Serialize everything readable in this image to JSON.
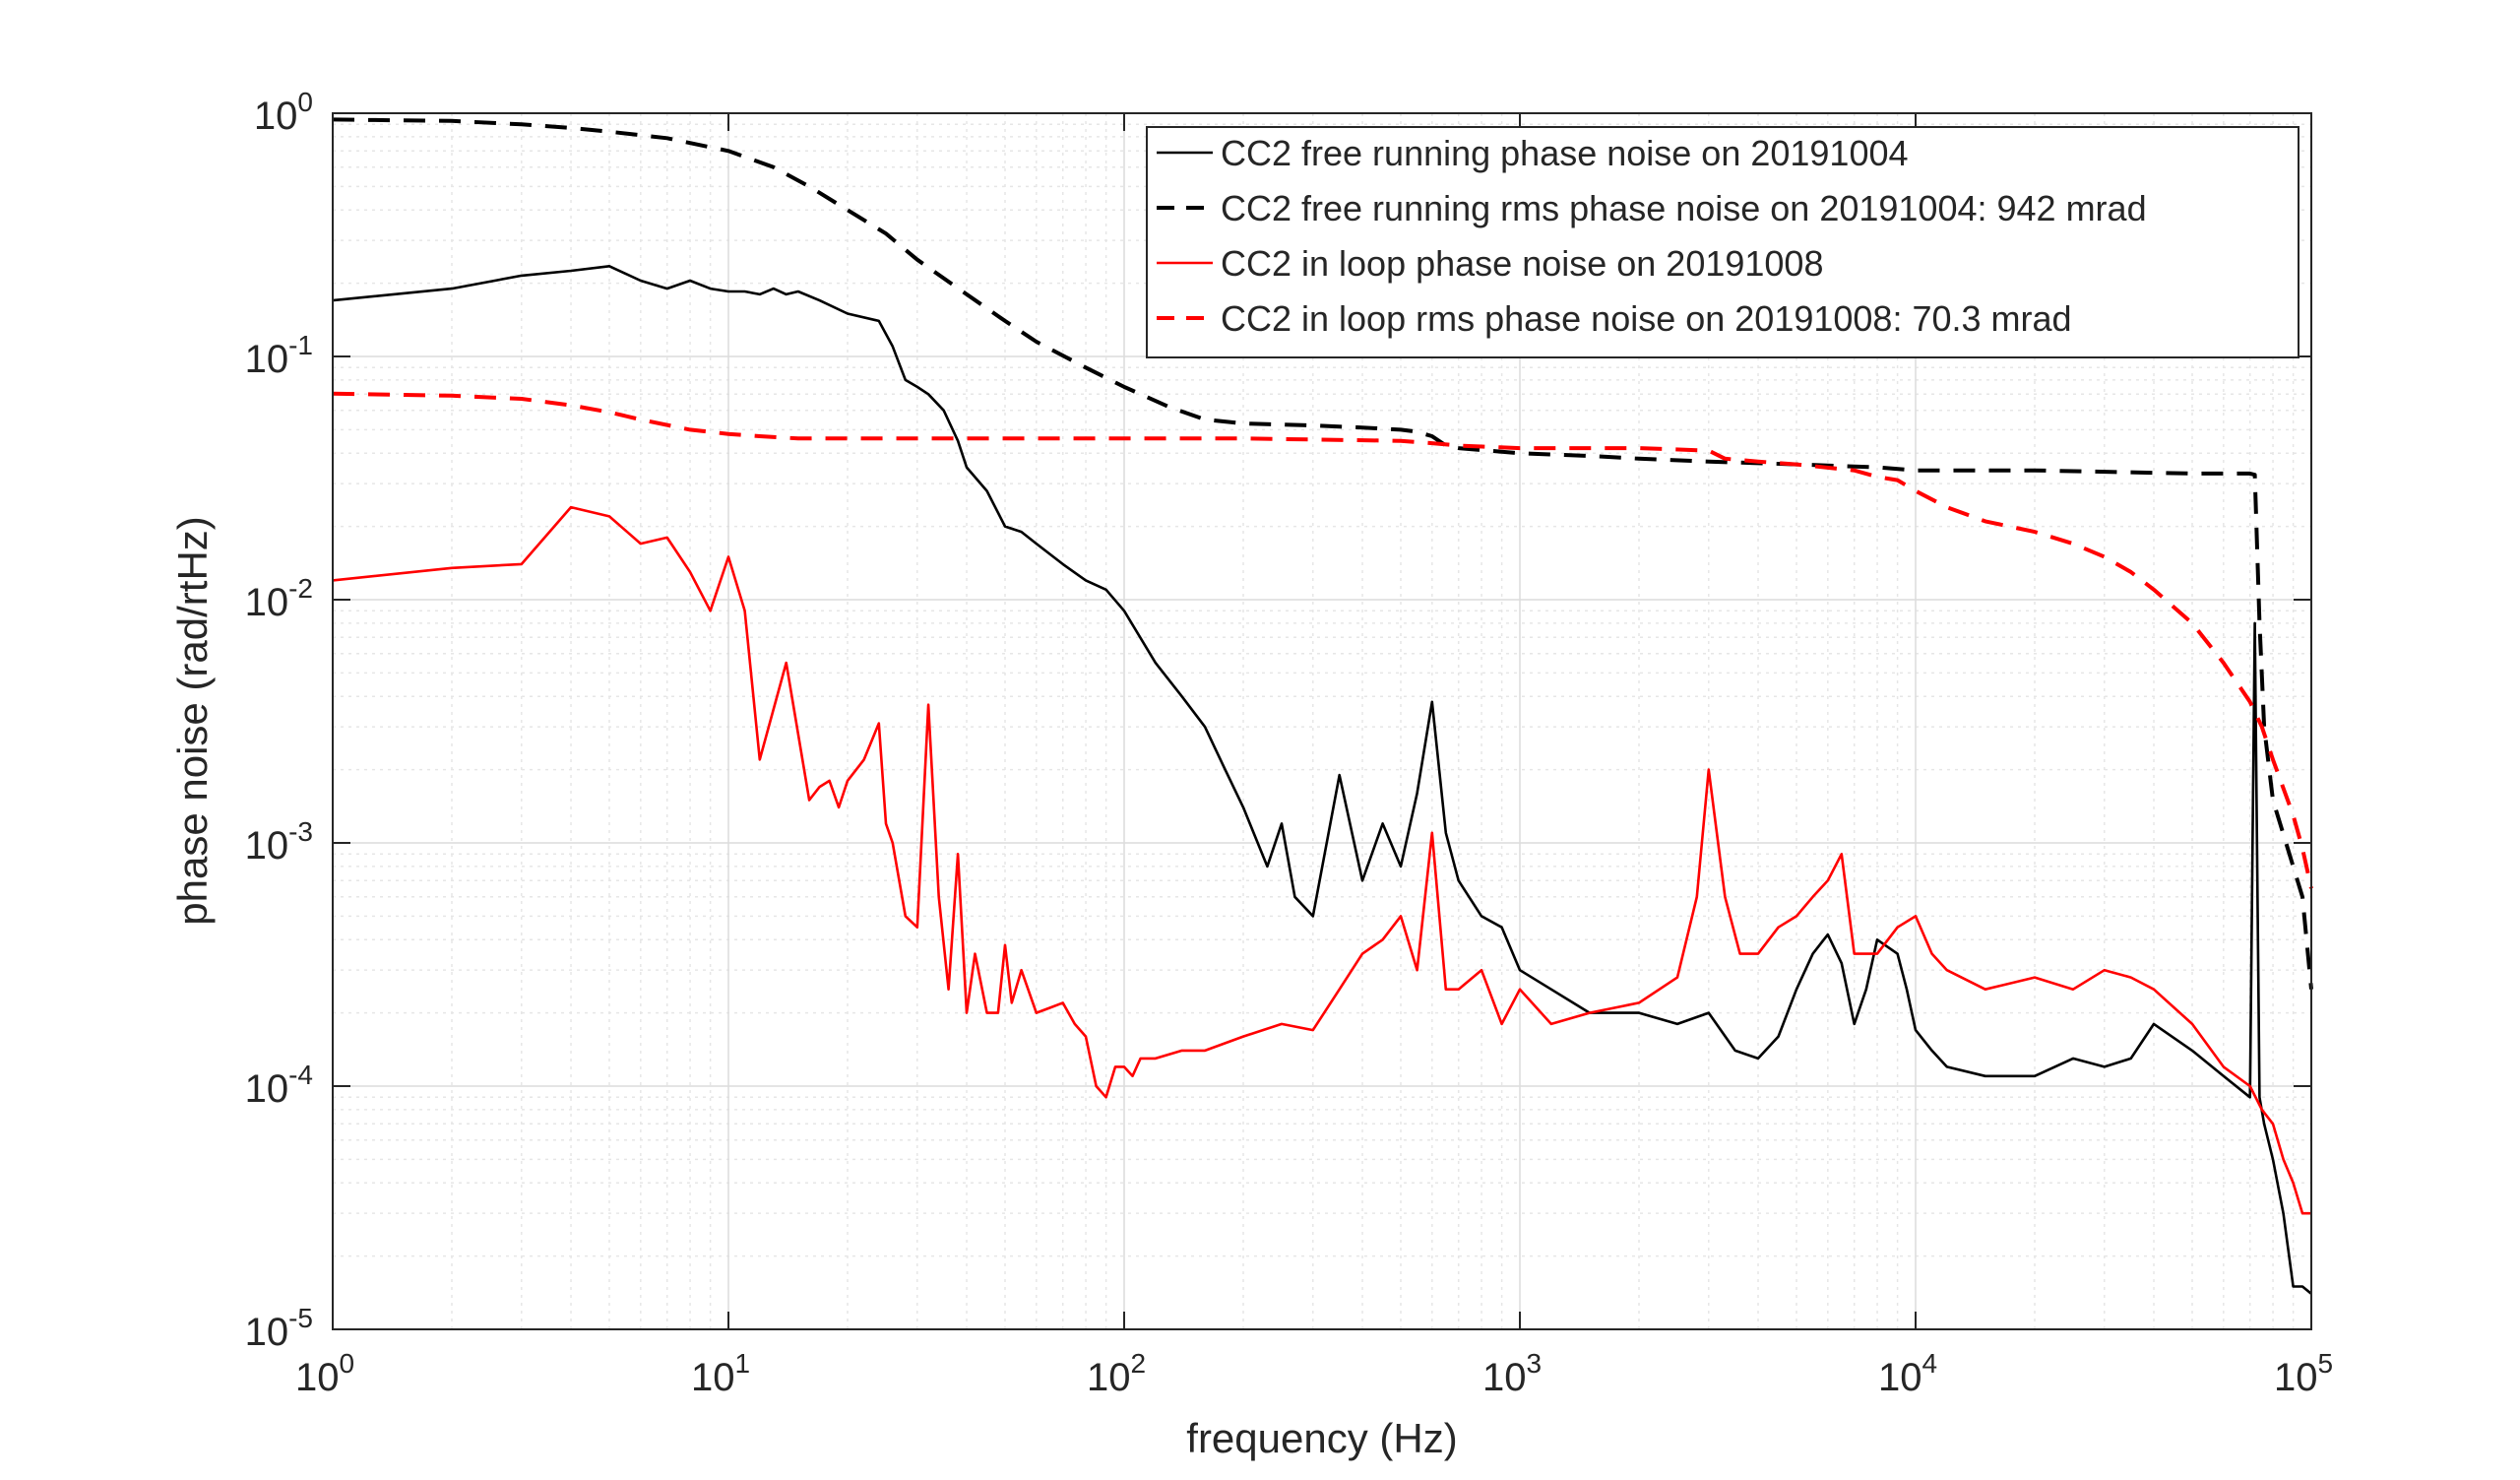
{
  "chart_data": {
    "type": "line",
    "title": "",
    "xlabel": "frequency (Hz)",
    "ylabel": "phase noise (rad/rtHz)",
    "x_scale": "log",
    "y_scale": "log",
    "xlim": [
      1,
      100000
    ],
    "ylim": [
      1e-05,
      1
    ],
    "grid": true,
    "minor_grid": true,
    "legend_position": "top-right",
    "x_ticks": [
      {
        "base": "10",
        "exp": "0",
        "value": 1
      },
      {
        "base": "10",
        "exp": "1",
        "value": 10
      },
      {
        "base": "10",
        "exp": "2",
        "value": 100
      },
      {
        "base": "10",
        "exp": "3",
        "value": 1000
      },
      {
        "base": "10",
        "exp": "4",
        "value": 10000
      },
      {
        "base": "10",
        "exp": "5",
        "value": 100000
      }
    ],
    "y_ticks": [
      {
        "base": "10",
        "exp": "-5",
        "value": 1e-05
      },
      {
        "base": "10",
        "exp": "-4",
        "value": 0.0001
      },
      {
        "base": "10",
        "exp": "-3",
        "value": 0.001
      },
      {
        "base": "10",
        "exp": "-2",
        "value": 0.01
      },
      {
        "base": "10",
        "exp": "-1",
        "value": 0.1
      },
      {
        "base": "10",
        "exp": "0",
        "value": 1
      }
    ],
    "series": [
      {
        "name": "CC2 free running phase noise on 20191004",
        "color": "#000000",
        "dash": "solid",
        "x": [
          1,
          2,
          3,
          4,
          5,
          6,
          7,
          8,
          9,
          10,
          11,
          12,
          13,
          14,
          15,
          17,
          20,
          24,
          26,
          28,
          30,
          32,
          35,
          38,
          40,
          45,
          50,
          55,
          60,
          70,
          80,
          90,
          100,
          120,
          140,
          160,
          180,
          200,
          230,
          250,
          270,
          300,
          350,
          400,
          450,
          500,
          550,
          600,
          650,
          700,
          800,
          900,
          1000,
          1200,
          1500,
          2000,
          2500,
          3000,
          3500,
          4000,
          4500,
          5000,
          5500,
          6000,
          6500,
          7000,
          7500,
          8000,
          9000,
          9500,
          10000,
          11000,
          12000,
          15000,
          20000,
          25000,
          30000,
          35000,
          40000,
          50000,
          60000,
          70000,
          72000,
          74000,
          76000,
          80000,
          85000,
          90000,
          95000,
          100000
        ],
        "y": [
          0.17,
          0.19,
          0.215,
          0.225,
          0.235,
          0.205,
          0.19,
          0.205,
          0.19,
          0.185,
          0.185,
          0.18,
          0.19,
          0.18,
          0.185,
          0.17,
          0.15,
          0.14,
          0.11,
          0.08,
          0.075,
          0.07,
          0.06,
          0.045,
          0.035,
          0.028,
          0.02,
          0.019,
          0.017,
          0.014,
          0.012,
          0.011,
          0.009,
          0.0055,
          0.004,
          0.003,
          0.002,
          0.0014,
          0.0008,
          0.0012,
          0.0006,
          0.0005,
          0.0019,
          0.0007,
          0.0012,
          0.0008,
          0.0016,
          0.0038,
          0.0011,
          0.0007,
          0.0005,
          0.00045,
          0.0003,
          0.00025,
          0.0002,
          0.0002,
          0.00018,
          0.0002,
          0.00014,
          0.00013,
          0.00016,
          0.00025,
          0.00035,
          0.00042,
          0.00032,
          0.00018,
          0.00025,
          0.0004,
          0.00035,
          0.00025,
          0.00017,
          0.00014,
          0.00012,
          0.00011,
          0.00011,
          0.00013,
          0.00012,
          0.00013,
          0.00018,
          0.00014,
          0.00011,
          9e-05,
          0.008,
          9e-05,
          7e-05,
          5e-05,
          3e-05,
          1.5e-05,
          1.5e-05,
          1.4e-05
        ]
      },
      {
        "name": "CC2 free running rms phase noise on 20191004: 942 mrad",
        "color": "#000000",
        "dash": "dashed",
        "x": [
          1,
          2,
          3,
          4,
          5,
          7,
          10,
          13,
          16,
          20,
          25,
          30,
          40,
          50,
          60,
          80,
          100,
          130,
          160,
          200,
          300,
          400,
          500,
          550,
          600,
          650,
          700,
          1000,
          1500,
          2000,
          3000,
          5000,
          8000,
          10000,
          20000,
          50000,
          70000,
          72000,
          74000,
          76000,
          80000,
          90000,
          95000,
          100000
        ],
        "y": [
          0.942,
          0.93,
          0.9,
          0.87,
          0.84,
          0.79,
          0.7,
          0.6,
          0.5,
          0.4,
          0.32,
          0.25,
          0.18,
          0.14,
          0.115,
          0.09,
          0.075,
          0.062,
          0.055,
          0.053,
          0.052,
          0.051,
          0.05,
          0.049,
          0.047,
          0.043,
          0.042,
          0.04,
          0.039,
          0.038,
          0.037,
          0.036,
          0.035,
          0.034,
          0.034,
          0.033,
          0.033,
          0.0326,
          0.008,
          0.003,
          0.0015,
          0.0008,
          0.0006,
          0.00025
        ]
      },
      {
        "name": "CC2 in loop phase noise on 20191008",
        "color": "#ff0000",
        "dash": "solid",
        "x": [
          1,
          2,
          3,
          4,
          5,
          6,
          7,
          8,
          9,
          10,
          11,
          12,
          14,
          16,
          17,
          18,
          19,
          20,
          22,
          24,
          25,
          26,
          28,
          30,
          32,
          34,
          36,
          38,
          40,
          42,
          45,
          48,
          50,
          52,
          55,
          60,
          65,
          70,
          75,
          80,
          85,
          90,
          95,
          100,
          105,
          110,
          120,
          140,
          160,
          200,
          250,
          300,
          350,
          400,
          450,
          500,
          550,
          600,
          650,
          700,
          800,
          900,
          1000,
          1200,
          1500,
          2000,
          2500,
          2800,
          3000,
          3300,
          3600,
          4000,
          4500,
          5000,
          5500,
          6000,
          6500,
          7000,
          8000,
          9000,
          10000,
          11000,
          12000,
          15000,
          20000,
          25000,
          30000,
          35000,
          40000,
          50000,
          60000,
          70000,
          75000,
          80000,
          85000,
          90000,
          95000,
          100000
        ],
        "y": [
          0.012,
          0.0135,
          0.014,
          0.024,
          0.022,
          0.017,
          0.018,
          0.013,
          0.009,
          0.015,
          0.009,
          0.0022,
          0.0055,
          0.0015,
          0.0017,
          0.0018,
          0.0014,
          0.0018,
          0.0022,
          0.0031,
          0.0012,
          0.001,
          0.0005,
          0.00045,
          0.0037,
          0.0006,
          0.00025,
          0.0009,
          0.0002,
          0.00035,
          0.0002,
          0.0002,
          0.00038,
          0.00022,
          0.0003,
          0.0002,
          0.00021,
          0.00022,
          0.00018,
          0.00016,
          0.0001,
          9e-05,
          0.00012,
          0.00012,
          0.00011,
          0.00013,
          0.00013,
          0.00014,
          0.00014,
          0.00016,
          0.00018,
          0.00017,
          0.00025,
          0.00035,
          0.0004,
          0.0005,
          0.0003,
          0.0011,
          0.00025,
          0.00025,
          0.0003,
          0.00018,
          0.00025,
          0.00018,
          0.0002,
          0.00022,
          0.00028,
          0.0006,
          0.002,
          0.0006,
          0.00035,
          0.00035,
          0.00045,
          0.0005,
          0.0006,
          0.0007,
          0.0009,
          0.00035,
          0.00035,
          0.00045,
          0.0005,
          0.00035,
          0.0003,
          0.00025,
          0.00028,
          0.00025,
          0.0003,
          0.00028,
          0.00025,
          0.00018,
          0.00012,
          0.0001,
          8e-05,
          7e-05,
          5e-05,
          4e-05,
          3e-05,
          3e-05
        ]
      },
      {
        "name": "CC2 in loop rms phase noise on 20191008: 70.3 mrad",
        "color": "#ff0000",
        "dash": "dashed",
        "x": [
          1,
          2,
          3,
          4,
          5,
          6,
          8,
          10,
          12,
          15,
          20,
          30,
          50,
          100,
          200,
          500,
          600,
          700,
          1000,
          2000,
          3000,
          3300,
          4000,
          5000,
          7000,
          8000,
          9000,
          10000,
          12000,
          15000,
          20000,
          25000,
          30000,
          35000,
          40000,
          50000,
          60000,
          70000,
          75000,
          80000,
          90000,
          95000,
          100000
        ],
        "y": [
          0.0703,
          0.069,
          0.067,
          0.063,
          0.059,
          0.055,
          0.05,
          0.048,
          0.047,
          0.046,
          0.046,
          0.046,
          0.046,
          0.046,
          0.046,
          0.045,
          0.044,
          0.043,
          0.042,
          0.042,
          0.041,
          0.038,
          0.037,
          0.036,
          0.034,
          0.032,
          0.031,
          0.028,
          0.024,
          0.021,
          0.019,
          0.017,
          0.015,
          0.013,
          0.011,
          0.008,
          0.0055,
          0.0038,
          0.003,
          0.0022,
          0.0013,
          0.00095,
          0.00065
        ]
      }
    ]
  }
}
